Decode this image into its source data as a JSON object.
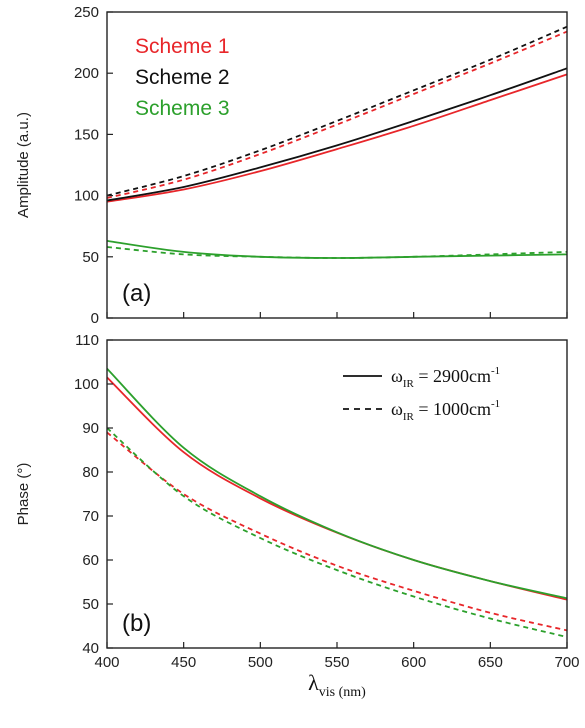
{
  "chart_data": [
    {
      "type": "line",
      "panel_label": "(a)",
      "xlabel": "",
      "ylabel": "Amplitude (a.u.)",
      "xlim": [
        400,
        700
      ],
      "ylim": [
        0,
        250
      ],
      "xticks": [
        400,
        450,
        500,
        550,
        600,
        650,
        700
      ],
      "yticks": [
        0,
        50,
        100,
        150,
        200,
        250
      ],
      "annotations": [
        {
          "text": "Scheme 1",
          "color": "#e8262a"
        },
        {
          "text": "Scheme 2",
          "color": "#111111"
        },
        {
          "text": "Scheme 3",
          "color": "#2ca02c"
        }
      ],
      "x": [
        400,
        450,
        500,
        550,
        600,
        650,
        700
      ],
      "series": [
        {
          "color": "#e8262a",
          "style": "solid",
          "values": [
            95,
            105,
            120,
            138,
            157,
            178,
            199
          ]
        },
        {
          "color": "#111111",
          "style": "solid",
          "values": [
            96,
            107,
            123,
            141,
            161,
            182,
            204
          ]
        },
        {
          "color": "#2ca02c",
          "style": "solid",
          "values": [
            63,
            54,
            50,
            49,
            50,
            51,
            52
          ]
        },
        {
          "color": "#e8262a",
          "style": "dashed",
          "values": [
            98,
            113,
            134,
            158,
            183,
            208,
            234
          ]
        },
        {
          "color": "#111111",
          "style": "dashed",
          "values": [
            100,
            116,
            137,
            161,
            186,
            211,
            238
          ]
        },
        {
          "color": "#2ca02c",
          "style": "dashed",
          "values": [
            58,
            52,
            50,
            49,
            50,
            52,
            54
          ]
        }
      ]
    },
    {
      "type": "line",
      "panel_label": "(b)",
      "xlabel": "λvis (nm)",
      "xlabel_main": "λ",
      "xlabel_sub": "vis (nm)",
      "ylabel": "Phase (°)",
      "xlim": [
        400,
        700
      ],
      "ylim": [
        40,
        110
      ],
      "xticks": [
        400,
        450,
        500,
        550,
        600,
        650,
        700
      ],
      "yticks": [
        40,
        50,
        60,
        70,
        80,
        90,
        100,
        110
      ],
      "legend": {
        "placement": "top-right",
        "entries": [
          {
            "style": "solid",
            "symbol": "ω",
            "sub": "IR",
            "value": " = 2900cm",
            "sup": "-1"
          },
          {
            "style": "dashed",
            "symbol": "ω",
            "sub": "IR",
            "value": " = 1000cm",
            "sup": "-1"
          }
        ]
      },
      "x": [
        400,
        450,
        500,
        550,
        600,
        650,
        700
      ],
      "series": [
        {
          "color": "#e8262a",
          "style": "solid",
          "values": [
            101.5,
            84.5,
            74.0,
            66.2,
            60.0,
            55.2,
            51.0
          ]
        },
        {
          "color": "#2ca02c",
          "style": "solid",
          "values": [
            103.5,
            85.5,
            74.5,
            66.3,
            60.0,
            55.2,
            51.3
          ]
        },
        {
          "color": "#e8262a",
          "style": "dashed",
          "values": [
            89.0,
            75.0,
            66.0,
            58.7,
            53.0,
            48.0,
            44.0
          ]
        },
        {
          "color": "#2ca02c",
          "style": "dashed",
          "values": [
            90.0,
            74.5,
            65.0,
            57.7,
            51.7,
            46.7,
            42.5
          ]
        }
      ]
    }
  ]
}
